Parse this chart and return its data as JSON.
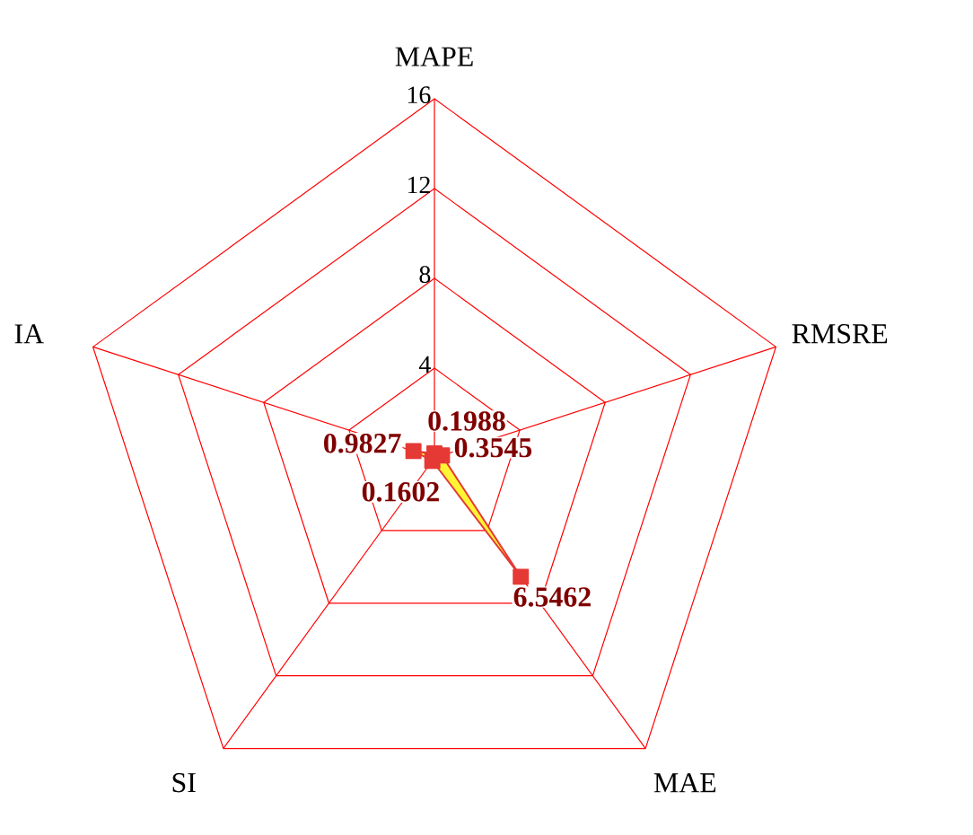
{
  "chart_data": {
    "type": "radar",
    "categories": [
      "MAPE",
      "RMSRE",
      "MAE",
      "SI",
      "IA"
    ],
    "series": [
      {
        "color": "#e53935",
        "values": [
          0.1988,
          0.3545,
          6.5462,
          0.1602,
          0.9827
        ]
      }
    ],
    "ylim": [
      0,
      16
    ],
    "yticks": [
      4,
      8,
      12,
      16
    ],
    "grid": true,
    "marker": "square",
    "data_labels": true
  }
}
